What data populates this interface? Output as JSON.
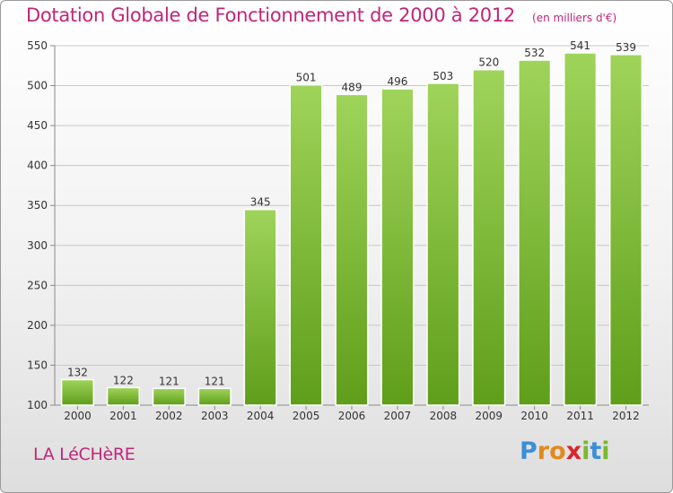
{
  "title": "Dotation Globale de Fonctionnement de 2000 à 2012",
  "unit": "(en milliers d'€)",
  "commune": "LA LéCHèRE",
  "brand": {
    "letters": [
      "P",
      "r",
      "o",
      "x",
      "i",
      "t",
      "i"
    ],
    "colors": [
      "#3b8fd9",
      "#e08a1e",
      "#e08a1e",
      "#d8262e",
      "#7ab82e",
      "#3b8fd9",
      "#7ab82e"
    ]
  },
  "colors": {
    "bar_top": "#9fd45a",
    "bar_bottom": "#5f9e1a",
    "title": "#c0267a"
  },
  "chart_data": {
    "type": "bar",
    "title": "Dotation Globale de Fonctionnement de 2000 à 2012",
    "categories": [
      "2000",
      "2001",
      "2002",
      "2003",
      "2004",
      "2005",
      "2006",
      "2007",
      "2008",
      "2009",
      "2010",
      "2011",
      "2012"
    ],
    "values": [
      132,
      122,
      121,
      121,
      345,
      501,
      489,
      496,
      503,
      520,
      532,
      541,
      539
    ],
    "ylim": [
      100,
      550
    ],
    "yticks": [
      100,
      150,
      200,
      250,
      300,
      350,
      400,
      450,
      500,
      550
    ],
    "grid": true
  }
}
